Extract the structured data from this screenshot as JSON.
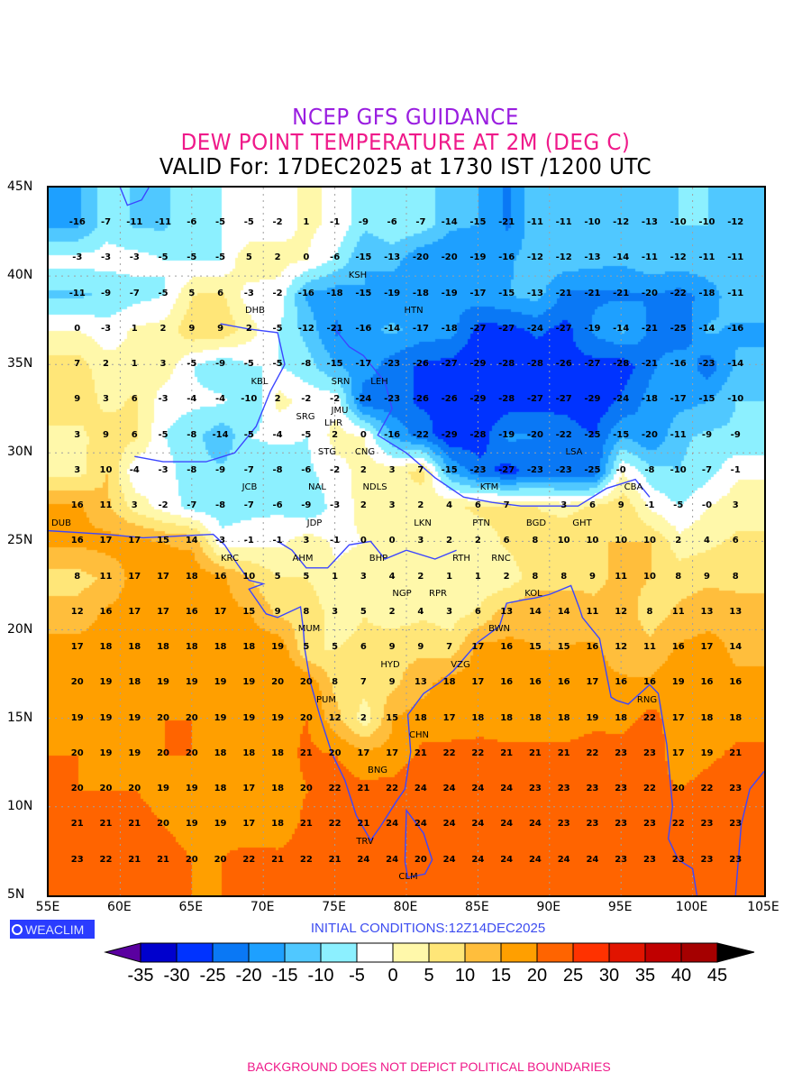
{
  "header": {
    "line1": "NCEP GFS GUIDANCE",
    "line2": "DEW POINT TEMPERATURE AT 2M (DEG C)",
    "line3": "VALID For: 17DEC2025 at 1730 IST /1200 UTC"
  },
  "axes": {
    "lat_labels": [
      "45N",
      "40N",
      "35N",
      "30N",
      "25N",
      "20N",
      "15N",
      "10N",
      "5N"
    ],
    "lon_labels": [
      "55E",
      "60E",
      "65E",
      "70E",
      "75E",
      "80E",
      "85E",
      "90E",
      "95E",
      "100E",
      "105E"
    ]
  },
  "logo": {
    "text": "WEACLIM"
  },
  "initial_conditions": "INITIAL CONDITIONS:12Z14DEC2025",
  "colorbar": {
    "labels": [
      "-35",
      "-30",
      "-25",
      "-20",
      "-15",
      "-10",
      "-5",
      "0",
      "5",
      "10",
      "15",
      "20",
      "25",
      "30",
      "35",
      "40",
      "45"
    ],
    "under_color": "#5a00a0",
    "over_color": "#000000",
    "colors": [
      "#0000cd",
      "#0033ff",
      "#0a78f5",
      "#1ea0ff",
      "#50c8ff",
      "#8cf0ff",
      "#ffffff",
      "#fff8aa",
      "#ffe678",
      "#ffbe3c",
      "#ff9f00",
      "#ff6400",
      "#ff3200",
      "#e11400",
      "#c00000",
      "#a50000"
    ]
  },
  "footer": "BACKGROUND DOES NOT DEPICT POLITICAL BOUNDARIES",
  "grid": {
    "lons": [
      57,
      59,
      61,
      63,
      65,
      67,
      69,
      71,
      73,
      75,
      77,
      79,
      81,
      83,
      85,
      87,
      89,
      91,
      93,
      95,
      97,
      99,
      101,
      103
    ],
    "lats": [
      43,
      41,
      39,
      37,
      35,
      33,
      31,
      29,
      27,
      25,
      23,
      21,
      19,
      17,
      15,
      13,
      11,
      9,
      7
    ],
    "values": [
      [
        -16,
        -7,
        -11,
        -11,
        -6,
        -5,
        -5,
        -2,
        1,
        -1,
        -9,
        -6,
        -7,
        -14,
        -15,
        -21,
        -11,
        -11,
        -10,
        -12,
        -13,
        -10,
        -10,
        -12
      ],
      [
        -3,
        -3,
        -3,
        -5,
        -5,
        -5,
        5,
        2,
        0,
        -6,
        -15,
        -13,
        -20,
        -20,
        -19,
        -16,
        -12,
        -12,
        -13,
        -14,
        -11,
        -12,
        -11,
        -11
      ],
      [
        -11,
        -9,
        -7,
        -5,
        5,
        6,
        -3,
        -2,
        -16,
        -18,
        -15,
        -19,
        -18,
        -19,
        -17,
        -15,
        -13,
        -21,
        -21,
        -21,
        -20,
        -22,
        -18,
        -11
      ],
      [
        0,
        -3,
        1,
        2,
        9,
        9,
        2,
        -5,
        -12,
        -21,
        -16,
        -14,
        -17,
        -18,
        -27,
        -27,
        -24,
        -27,
        -19,
        -14,
        -21,
        -25,
        -14,
        -16
      ],
      [
        7,
        2,
        1,
        3,
        -5,
        -9,
        -5,
        -5,
        -8,
        -15,
        -17,
        -23,
        -26,
        -27,
        -29,
        -28,
        -28,
        -26,
        -27,
        -28,
        -21,
        -16,
        -23,
        -14
      ],
      [
        9,
        3,
        6,
        -3,
        -4,
        -4,
        -10,
        2,
        -2,
        -2,
        -24,
        -23,
        -26,
        -26,
        -29,
        -28,
        -27,
        -27,
        -29,
        -24,
        -18,
        -17,
        -15,
        -10
      ],
      [
        3,
        9,
        6,
        -5,
        -8,
        -14,
        -5,
        -4,
        -5,
        2,
        0,
        -16,
        -22,
        -29,
        -28,
        -19,
        -20,
        -22,
        -25,
        -15,
        -20,
        -11,
        -9,
        -9
      ],
      [
        3,
        10,
        -4,
        -3,
        -8,
        -9,
        -7,
        -8,
        -6,
        -2,
        2,
        3,
        7,
        -15,
        -23,
        -27,
        -23,
        -23,
        -25,
        0,
        -8,
        -10,
        -7,
        -1
      ],
      [
        16,
        11,
        3,
        -2,
        -7,
        -8,
        -7,
        -6,
        -9,
        -3,
        2,
        3,
        2,
        4,
        6,
        7,
        null,
        3,
        6,
        9,
        -1,
        -5,
        0,
        3
      ],
      [
        16,
        17,
        17,
        15,
        14,
        -3,
        -1,
        -1,
        3,
        -1,
        0,
        0,
        3,
        2,
        2,
        6,
        8,
        10,
        10,
        10,
        10,
        2,
        4,
        6
      ],
      [
        8,
        11,
        17,
        17,
        18,
        16,
        10,
        5,
        5,
        1,
        3,
        4,
        2,
        1,
        1,
        2,
        8,
        8,
        9,
        11,
        10,
        8,
        9,
        8
      ],
      [
        12,
        16,
        17,
        17,
        16,
        17,
        15,
        9,
        8,
        3,
        5,
        2,
        4,
        3,
        6,
        13,
        14,
        14,
        11,
        12,
        8,
        11,
        13,
        13
      ],
      [
        17,
        18,
        18,
        18,
        18,
        18,
        18,
        19,
        5,
        5,
        6,
        9,
        9,
        7,
        17,
        16,
        15,
        15,
        16,
        12,
        11,
        16,
        17,
        14
      ],
      [
        20,
        19,
        18,
        19,
        19,
        19,
        19,
        20,
        20,
        8,
        7,
        9,
        13,
        18,
        17,
        16,
        16,
        16,
        17,
        16,
        16,
        19,
        16,
        16
      ],
      [
        19,
        19,
        19,
        20,
        20,
        19,
        19,
        19,
        20,
        12,
        2,
        15,
        18,
        17,
        18,
        18,
        18,
        18,
        19,
        18,
        22,
        17,
        18,
        18
      ],
      [
        20,
        19,
        19,
        20,
        20,
        18,
        18,
        18,
        21,
        20,
        17,
        17,
        21,
        22,
        22,
        21,
        21,
        21,
        22,
        23,
        23,
        17,
        19,
        21
      ],
      [
        20,
        20,
        20,
        19,
        19,
        18,
        17,
        18,
        20,
        22,
        21,
        22,
        24,
        24,
        24,
        24,
        23,
        23,
        23,
        23,
        22,
        20,
        22,
        23
      ],
      [
        21,
        21,
        21,
        20,
        19,
        19,
        17,
        18,
        21,
        22,
        21,
        24,
        24,
        24,
        24,
        24,
        24,
        23,
        23,
        23,
        23,
        22,
        23,
        23
      ],
      [
        23,
        22,
        21,
        21,
        20,
        20,
        22,
        21,
        22,
        21,
        24,
        24,
        20,
        24,
        24,
        24,
        24,
        24,
        24,
        23,
        23,
        23,
        23,
        23
      ]
    ]
  },
  "cities": [
    "DHB",
    "KSH",
    "HTN",
    "KBL",
    "SRN",
    "LEH",
    "JMU",
    "SRG",
    "LHR",
    "CNG",
    "STG",
    "NAL",
    "JCB",
    "NDLS",
    "LSA",
    "KTM",
    "BGD",
    "CBA",
    "GHT",
    "LKN",
    "JDP",
    "PTN",
    "RTH",
    "DUB",
    "KRC",
    "BHP",
    "RNC",
    "AHM",
    "KOL",
    "NGP",
    "RPR",
    "BWN",
    "MUM",
    "HYD",
    "VZG",
    "RNG",
    "PUM",
    "CHN",
    "BNG",
    "TRV",
    "CLM"
  ],
  "coast_color": "#3c46ff"
}
